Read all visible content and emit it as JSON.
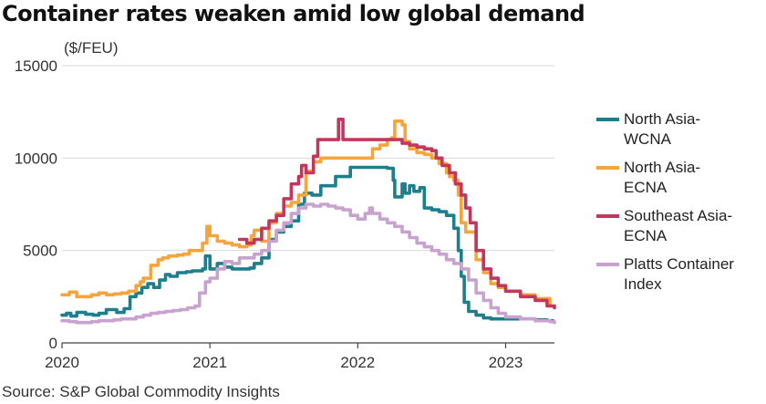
{
  "title": "Container rates weaken amid low global demand",
  "source": "Source: S&P Global Commodity Insights",
  "chart_data": {
    "type": "line",
    "unit_label": "($/FEU)",
    "ylim": [
      0,
      15000
    ],
    "yticks": [
      0,
      5000,
      10000,
      15000
    ],
    "xlim": [
      2020,
      2023.33
    ],
    "xticks": [
      2020,
      2021,
      2022,
      2023
    ],
    "grid": true,
    "legend_position": "right",
    "series": [
      {
        "name": "North Asia-\nWCNA",
        "color": "#1e7f8c",
        "points": [
          [
            2020.0,
            1500
          ],
          [
            2020.03,
            1600
          ],
          [
            2020.06,
            1450
          ],
          [
            2020.1,
            1650
          ],
          [
            2020.16,
            1550
          ],
          [
            2020.21,
            1500
          ],
          [
            2020.25,
            1600
          ],
          [
            2020.3,
            1800
          ],
          [
            2020.37,
            1650
          ],
          [
            2020.42,
            1850
          ],
          [
            2020.46,
            2500
          ],
          [
            2020.5,
            2700
          ],
          [
            2020.54,
            3000
          ],
          [
            2020.58,
            3200
          ],
          [
            2020.62,
            3000
          ],
          [
            2020.66,
            3400
          ],
          [
            2020.7,
            3700
          ],
          [
            2020.73,
            3600
          ],
          [
            2020.78,
            3800
          ],
          [
            2020.84,
            3850
          ],
          [
            2020.88,
            3900
          ],
          [
            2020.95,
            4000
          ],
          [
            2020.97,
            4700
          ],
          [
            2021.0,
            4000
          ],
          [
            2021.05,
            4300
          ],
          [
            2021.1,
            4100
          ],
          [
            2021.15,
            4000
          ],
          [
            2021.22,
            4000
          ],
          [
            2021.27,
            4050
          ],
          [
            2021.3,
            4300
          ],
          [
            2021.35,
            4600
          ],
          [
            2021.4,
            5600
          ],
          [
            2021.45,
            6000
          ],
          [
            2021.5,
            6300
          ],
          [
            2021.55,
            6600
          ],
          [
            2021.6,
            7500
          ],
          [
            2021.64,
            8100
          ],
          [
            2021.69,
            8000
          ],
          [
            2021.75,
            8500
          ],
          [
            2021.8,
            8500
          ],
          [
            2021.85,
            9000
          ],
          [
            2021.9,
            9000
          ],
          [
            2021.95,
            9500
          ],
          [
            2022.05,
            9500
          ],
          [
            2022.1,
            9500
          ],
          [
            2022.2,
            9450
          ],
          [
            2022.24,
            8800
          ],
          [
            2022.25,
            7900
          ],
          [
            2022.3,
            8600
          ],
          [
            2022.32,
            8100
          ],
          [
            2022.35,
            8500
          ],
          [
            2022.38,
            8200
          ],
          [
            2022.42,
            8400
          ],
          [
            2022.45,
            7300
          ],
          [
            2022.5,
            7200
          ],
          [
            2022.55,
            7100
          ],
          [
            2022.6,
            6900
          ],
          [
            2022.65,
            6200
          ],
          [
            2022.68,
            5000
          ],
          [
            2022.7,
            3600
          ],
          [
            2022.72,
            2200
          ],
          [
            2022.75,
            1700
          ],
          [
            2022.8,
            1500
          ],
          [
            2022.85,
            1350
          ],
          [
            2022.9,
            1300
          ],
          [
            2023.0,
            1300
          ],
          [
            2023.1,
            1300
          ],
          [
            2023.2,
            1250
          ],
          [
            2023.28,
            1200
          ],
          [
            2023.32,
            1200
          ]
        ]
      },
      {
        "name": "North Asia-\nECNA",
        "color": "#f4a53b",
        "points": [
          [
            2020.0,
            2600
          ],
          [
            2020.05,
            2750
          ],
          [
            2020.1,
            2500
          ],
          [
            2020.15,
            2500
          ],
          [
            2020.2,
            2600
          ],
          [
            2020.25,
            2700
          ],
          [
            2020.3,
            2600
          ],
          [
            2020.35,
            2650
          ],
          [
            2020.4,
            2700
          ],
          [
            2020.45,
            2800
          ],
          [
            2020.5,
            3100
          ],
          [
            2020.53,
            3300
          ],
          [
            2020.55,
            3500
          ],
          [
            2020.6,
            4200
          ],
          [
            2020.65,
            4500
          ],
          [
            2020.68,
            4600
          ],
          [
            2020.72,
            4700
          ],
          [
            2020.78,
            4750
          ],
          [
            2020.82,
            4800
          ],
          [
            2020.86,
            5000
          ],
          [
            2020.9,
            5000
          ],
          [
            2020.95,
            5400
          ],
          [
            2020.98,
            6300
          ],
          [
            2021.0,
            5800
          ],
          [
            2021.05,
            5500
          ],
          [
            2021.1,
            5400
          ],
          [
            2021.15,
            5300
          ],
          [
            2021.2,
            5200
          ],
          [
            2021.25,
            5300
          ],
          [
            2021.28,
            5800
          ],
          [
            2021.3,
            6100
          ],
          [
            2021.35,
            5500
          ],
          [
            2021.4,
            6500
          ],
          [
            2021.45,
            7000
          ],
          [
            2021.5,
            7400
          ],
          [
            2021.55,
            7600
          ],
          [
            2021.6,
            8000
          ],
          [
            2021.65,
            9300
          ],
          [
            2021.7,
            9800
          ],
          [
            2021.75,
            10000
          ],
          [
            2021.85,
            10000
          ],
          [
            2021.95,
            10000
          ],
          [
            2022.05,
            10000
          ],
          [
            2022.1,
            10500
          ],
          [
            2022.15,
            10700
          ],
          [
            2022.2,
            11000
          ],
          [
            2022.23,
            11100
          ],
          [
            2022.25,
            12000
          ],
          [
            2022.3,
            11800
          ],
          [
            2022.32,
            10900
          ],
          [
            2022.35,
            10500
          ],
          [
            2022.4,
            10300
          ],
          [
            2022.45,
            10200
          ],
          [
            2022.5,
            10000
          ],
          [
            2022.55,
            9700
          ],
          [
            2022.6,
            9200
          ],
          [
            2022.62,
            9000
          ],
          [
            2022.65,
            8800
          ],
          [
            2022.68,
            8000
          ],
          [
            2022.7,
            6500
          ],
          [
            2022.73,
            6000
          ],
          [
            2022.76,
            6000
          ],
          [
            2022.8,
            4500
          ],
          [
            2022.85,
            3800
          ],
          [
            2022.9,
            3200
          ],
          [
            2022.95,
            3000
          ],
          [
            2023.0,
            2800
          ],
          [
            2023.1,
            2600
          ],
          [
            2023.2,
            2400
          ],
          [
            2023.3,
            2000
          ],
          [
            2023.33,
            2000
          ]
        ]
      },
      {
        "name": "Southeast Asia-\nECNA",
        "color": "#c3375c",
        "points": [
          [
            2021.2,
            5600
          ],
          [
            2021.25,
            5400
          ],
          [
            2021.3,
            5600
          ],
          [
            2021.35,
            6200
          ],
          [
            2021.4,
            6600
          ],
          [
            2021.45,
            6900
          ],
          [
            2021.5,
            7800
          ],
          [
            2021.55,
            8600
          ],
          [
            2021.6,
            9000
          ],
          [
            2021.62,
            9600
          ],
          [
            2021.65,
            9200
          ],
          [
            2021.7,
            10100
          ],
          [
            2021.73,
            11000
          ],
          [
            2021.8,
            11000
          ],
          [
            2021.85,
            11000
          ],
          [
            2021.87,
            12100
          ],
          [
            2021.9,
            11000
          ],
          [
            2022.0,
            11000
          ],
          [
            2022.1,
            11000
          ],
          [
            2022.2,
            11000
          ],
          [
            2022.3,
            10800
          ],
          [
            2022.35,
            10700
          ],
          [
            2022.4,
            10600
          ],
          [
            2022.45,
            10500
          ],
          [
            2022.5,
            10400
          ],
          [
            2022.53,
            10000
          ],
          [
            2022.57,
            9600
          ],
          [
            2022.62,
            9200
          ],
          [
            2022.66,
            8600
          ],
          [
            2022.7,
            8000
          ],
          [
            2022.73,
            7300
          ],
          [
            2022.76,
            6500
          ],
          [
            2022.8,
            5000
          ],
          [
            2022.85,
            4000
          ],
          [
            2022.9,
            3500
          ],
          [
            2022.95,
            3100
          ],
          [
            2023.0,
            2800
          ],
          [
            2023.1,
            2500
          ],
          [
            2023.2,
            2300
          ],
          [
            2023.28,
            2000
          ],
          [
            2023.33,
            1900
          ]
        ]
      },
      {
        "name": "Platts Container\nIndex",
        "color": "#c9a3d0",
        "points": [
          [
            2020.0,
            1200
          ],
          [
            2020.05,
            1150
          ],
          [
            2020.1,
            1100
          ],
          [
            2020.15,
            1100
          ],
          [
            2020.2,
            1150
          ],
          [
            2020.25,
            1200
          ],
          [
            2020.3,
            1200
          ],
          [
            2020.35,
            1250
          ],
          [
            2020.4,
            1300
          ],
          [
            2020.45,
            1300
          ],
          [
            2020.5,
            1400
          ],
          [
            2020.55,
            1500
          ],
          [
            2020.6,
            1600
          ],
          [
            2020.65,
            1650
          ],
          [
            2020.7,
            1700
          ],
          [
            2020.75,
            1750
          ],
          [
            2020.8,
            1800
          ],
          [
            2020.85,
            1900
          ],
          [
            2020.9,
            2000
          ],
          [
            2020.93,
            2700
          ],
          [
            2020.97,
            3300
          ],
          [
            2021.0,
            3500
          ],
          [
            2021.05,
            4000
          ],
          [
            2021.1,
            4400
          ],
          [
            2021.15,
            4300
          ],
          [
            2021.2,
            4600
          ],
          [
            2021.25,
            4600
          ],
          [
            2021.3,
            4800
          ],
          [
            2021.35,
            5000
          ],
          [
            2021.4,
            5500
          ],
          [
            2021.45,
            6100
          ],
          [
            2021.5,
            6500
          ],
          [
            2021.55,
            7000
          ],
          [
            2021.6,
            7300
          ],
          [
            2021.65,
            7500
          ],
          [
            2021.7,
            7400
          ],
          [
            2021.75,
            7500
          ],
          [
            2021.8,
            7400
          ],
          [
            2021.85,
            7300
          ],
          [
            2021.9,
            7200
          ],
          [
            2021.95,
            6900
          ],
          [
            2022.0,
            6700
          ],
          [
            2022.05,
            7000
          ],
          [
            2022.08,
            7300
          ],
          [
            2022.1,
            7000
          ],
          [
            2022.15,
            6700
          ],
          [
            2022.2,
            6500
          ],
          [
            2022.25,
            6300
          ],
          [
            2022.3,
            6000
          ],
          [
            2022.35,
            5700
          ],
          [
            2022.4,
            5400
          ],
          [
            2022.45,
            5200
          ],
          [
            2022.5,
            5000
          ],
          [
            2022.55,
            4800
          ],
          [
            2022.6,
            4500
          ],
          [
            2022.65,
            4300
          ],
          [
            2022.7,
            4000
          ],
          [
            2022.75,
            3400
          ],
          [
            2022.8,
            2700
          ],
          [
            2022.85,
            2300
          ],
          [
            2022.9,
            1900
          ],
          [
            2022.95,
            1600
          ],
          [
            2023.0,
            1400
          ],
          [
            2023.1,
            1300
          ],
          [
            2023.2,
            1200
          ],
          [
            2023.3,
            1150
          ],
          [
            2023.33,
            1100
          ]
        ]
      }
    ]
  }
}
